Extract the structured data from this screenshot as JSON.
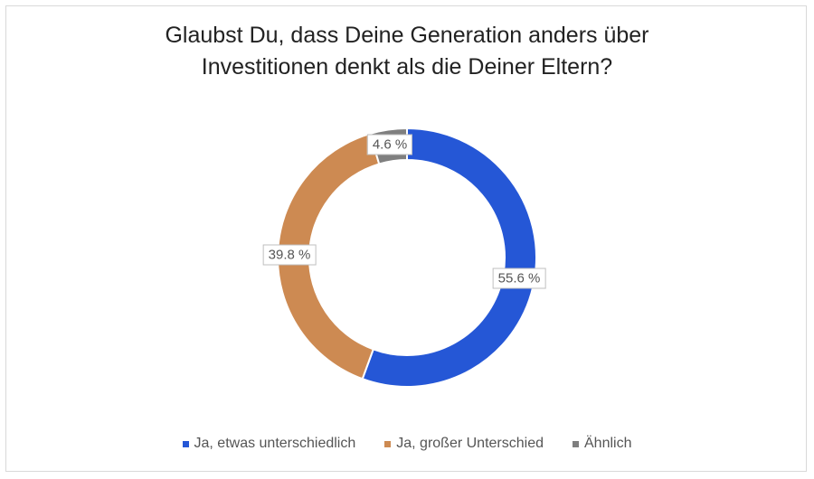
{
  "chart_data": {
    "type": "pie",
    "donut": true,
    "title": "Glaubst Du, dass Deine Generation anders über Investitionen denkt als die Deiner Eltern?",
    "title_lines": [
      "Glaubst Du, dass Deine Generation anders über",
      "Investitionen denkt als die Deiner Eltern?"
    ],
    "legend_position": "bottom",
    "slices": [
      {
        "name": "Ja, etwas unterschiedlich",
        "value": 55.6,
        "label": "55.6 %",
        "color": "#2557d6"
      },
      {
        "name": "Ja, großer Unterschied",
        "value": 39.8,
        "label": "39.8 %",
        "color": "#cd8a52"
      },
      {
        "name": "Ähnlich",
        "value": 4.6,
        "label": "4.6 %",
        "color": "#7f7f7f"
      }
    ]
  }
}
